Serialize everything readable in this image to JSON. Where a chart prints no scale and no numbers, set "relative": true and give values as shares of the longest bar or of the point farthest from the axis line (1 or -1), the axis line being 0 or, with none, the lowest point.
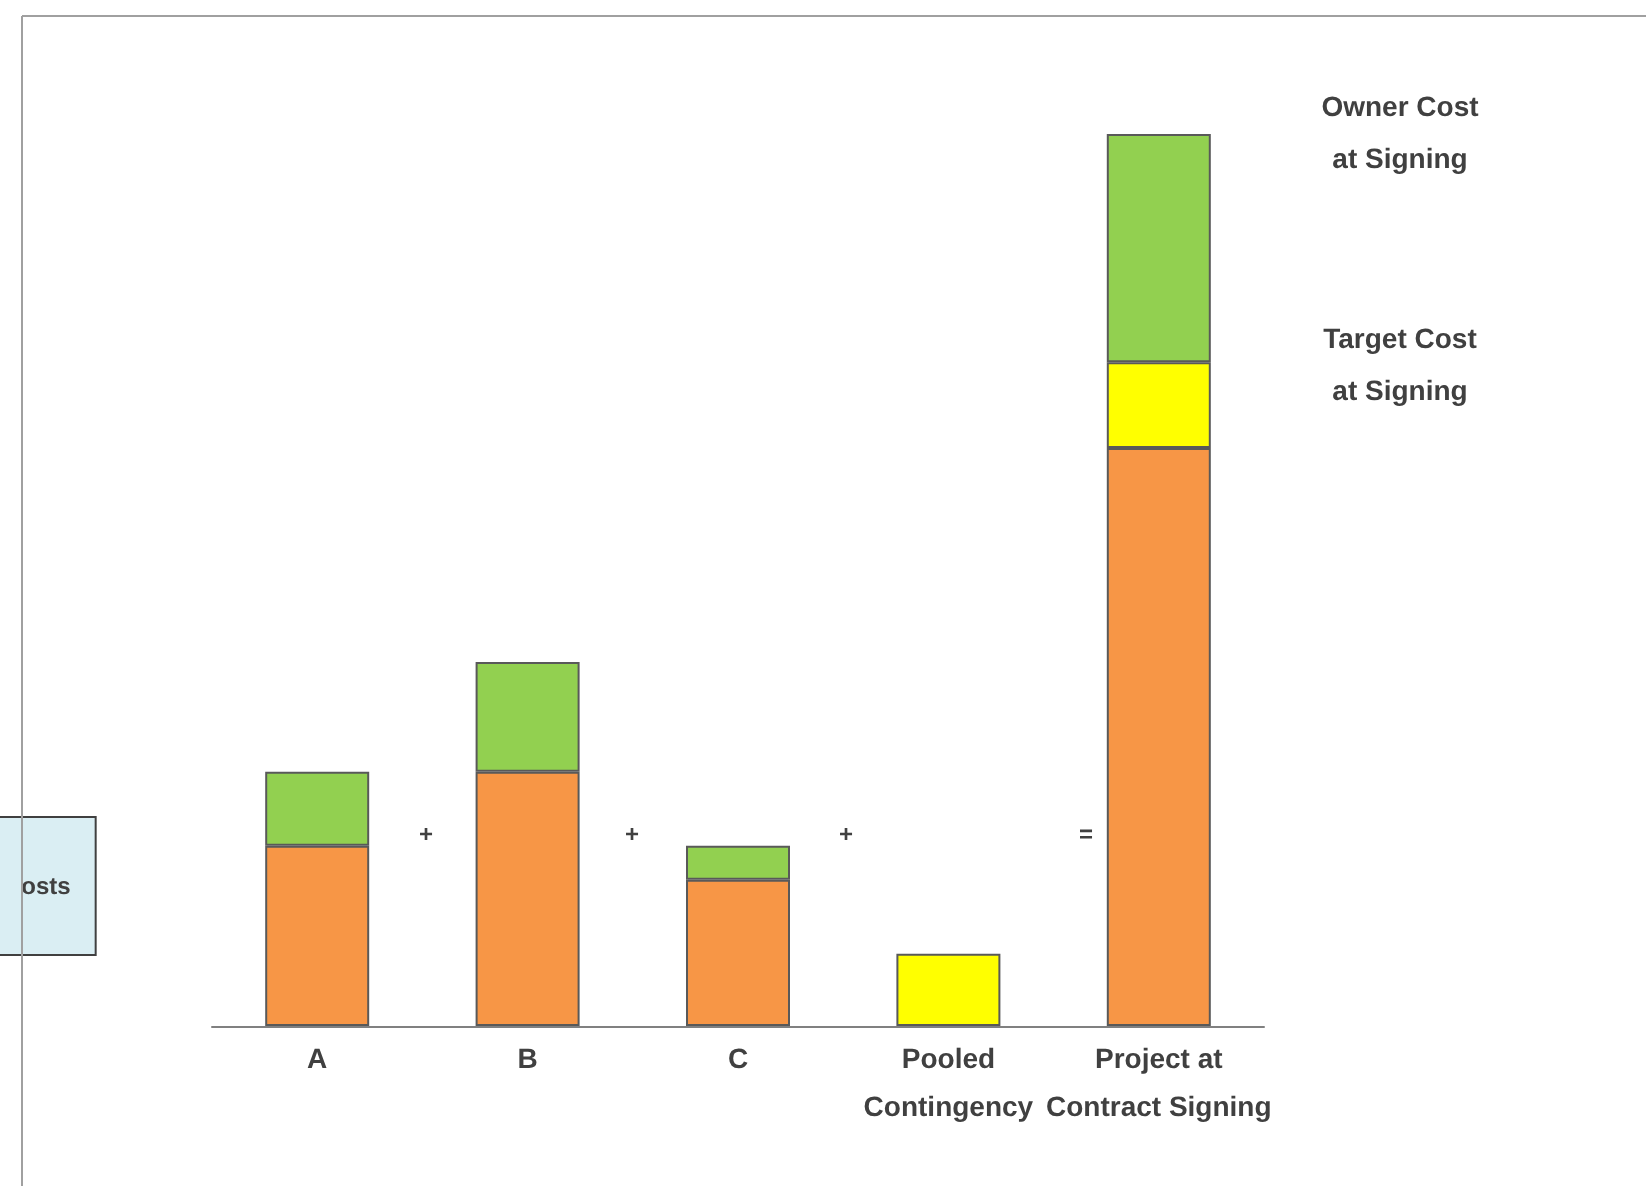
{
  "chart_data": {
    "type": "bar",
    "stacked": true,
    "relative": true,
    "categories": [
      "A",
      "B",
      "C",
      "Pooled\nContingency",
      "Project at\nContract Signing"
    ],
    "series": [
      {
        "color": "#f79646",
        "values": [
          0.202,
          0.285,
          0.164,
          null,
          0.648
        ]
      },
      {
        "color": "#ffff00",
        "values": [
          null,
          null,
          null,
          0.081,
          0.096
        ]
      },
      {
        "color": "#92d050",
        "values": [
          0.083,
          0.123,
          0.038,
          null,
          0.256
        ]
      }
    ],
    "annotations": [
      "+",
      "+",
      "+",
      "=",
      "Owner Cost\nat Signing",
      "Target Cost\nat Signing",
      "osts"
    ]
  }
}
